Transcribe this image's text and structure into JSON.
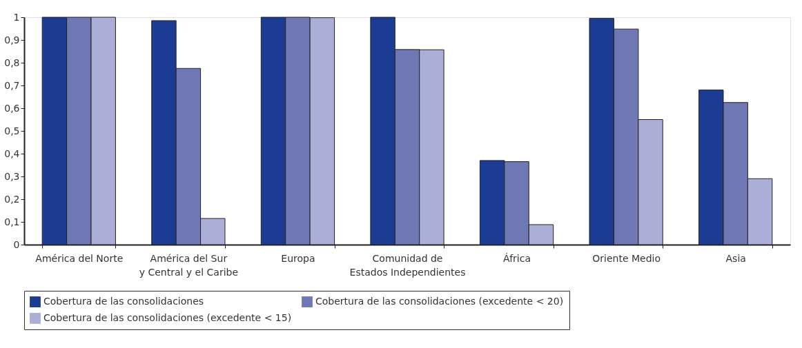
{
  "chart_data": {
    "type": "bar",
    "categories": [
      "América del Norte",
      "América del Sur\ny Central y el Caribe",
      "Europa",
      "Comunidad de\nEstados Independientes",
      "África",
      "Oriente Medio",
      "Asia"
    ],
    "series": [
      {
        "name": "Cobertura de las consolidaciones",
        "color": "#1c3c93",
        "values": [
          1,
          0.985,
          1,
          1,
          0.37,
          0.995,
          0.68
        ]
      },
      {
        "name": "Cobertura de las consolidaciones (excedente < 20)",
        "color": "#6f77b4",
        "values": [
          1,
          0.775,
          1,
          0.858,
          0.365,
          0.948,
          0.625
        ]
      },
      {
        "name": "Cobertura de las consolidaciones (excedente < 15)",
        "color": "#abaed6",
        "values": [
          1,
          0.115,
          0.998,
          0.857,
          0.088,
          0.55,
          0.29
        ]
      }
    ],
    "ylim": [
      0,
      1
    ],
    "yticks": [
      {
        "value": 0,
        "label": "0"
      },
      {
        "value": 0.1,
        "label": "0,1"
      },
      {
        "value": 0.2,
        "label": "0,2"
      },
      {
        "value": 0.3,
        "label": "0,3"
      },
      {
        "value": 0.4,
        "label": "0,4"
      },
      {
        "value": 0.5,
        "label": "0,5"
      },
      {
        "value": 0.6,
        "label": "0,6"
      },
      {
        "value": 0.7,
        "label": "0,7"
      },
      {
        "value": 0.8,
        "label": "0,8"
      },
      {
        "value": 0.9,
        "label": "0,9"
      },
      {
        "value": 1,
        "label": "1"
      }
    ],
    "grid": false,
    "legend": "bottom"
  }
}
